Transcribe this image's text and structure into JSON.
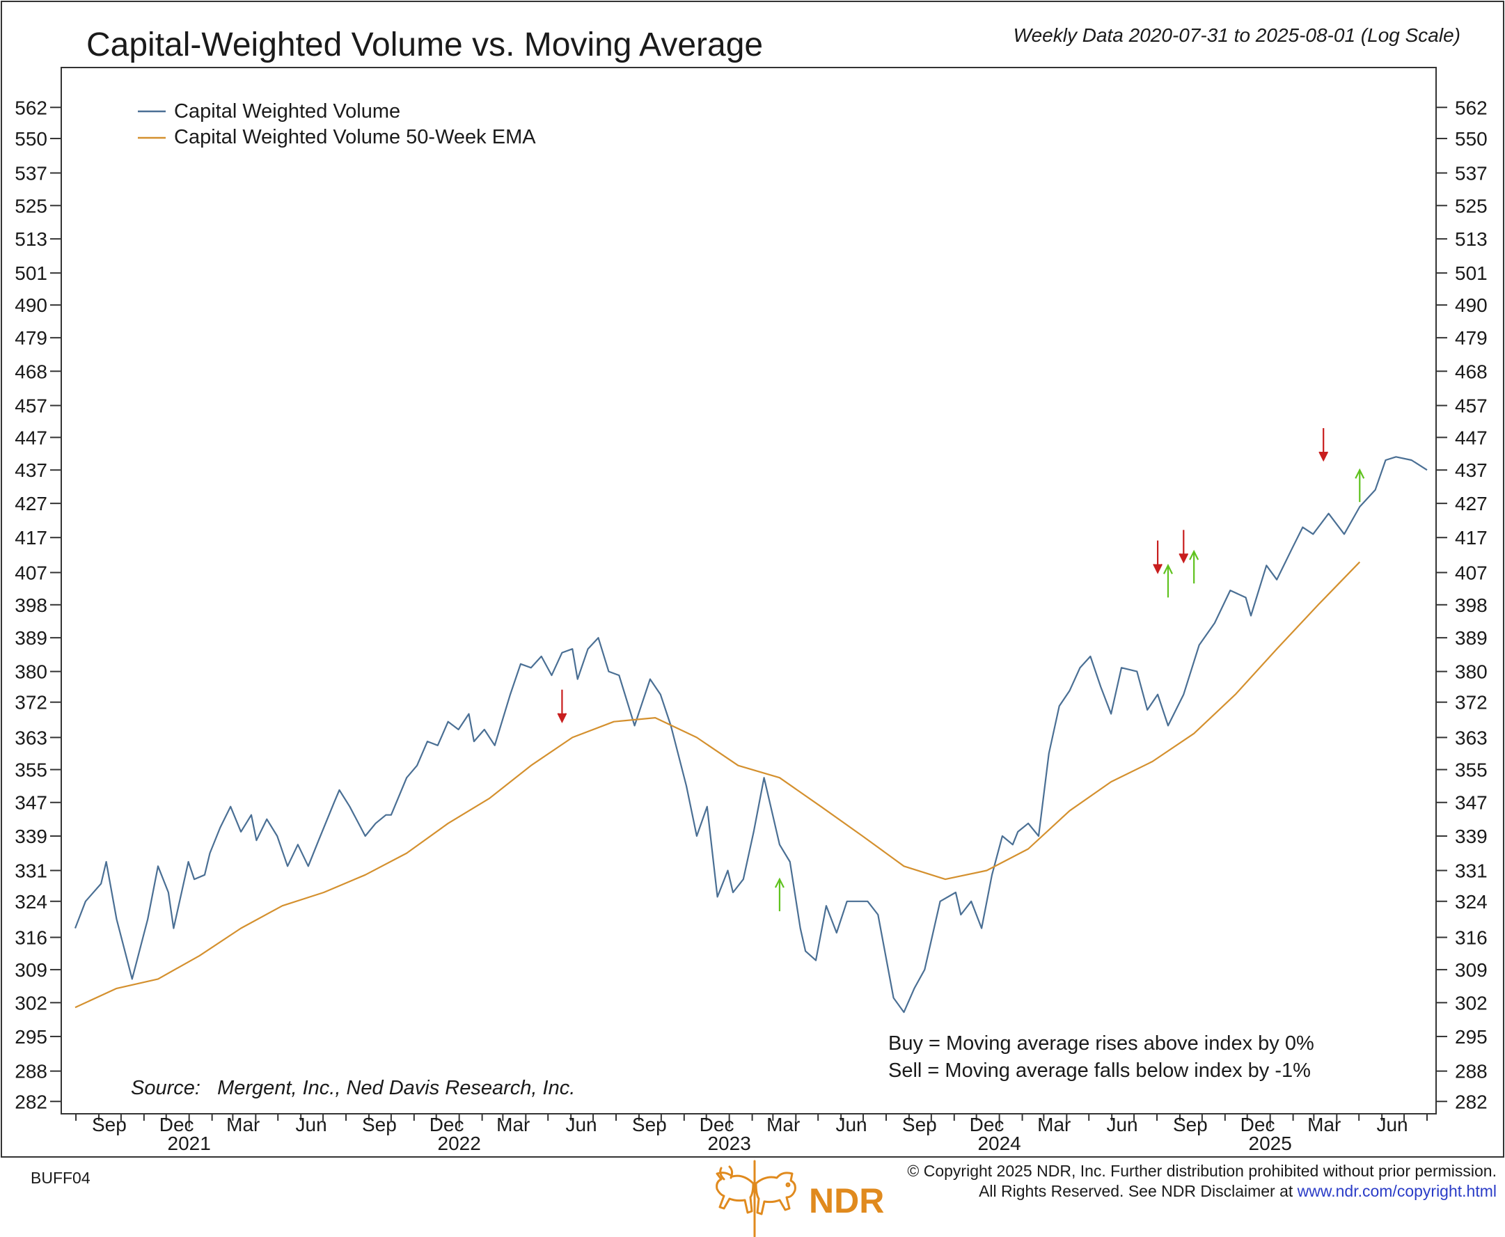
{
  "title": "Capital-Weighted Volume vs. Moving Average",
  "subtitle": "Weekly Data 2020-07-31 to 2025-08-01 (Log Scale)",
  "colors": {
    "volume": "#4a6f94",
    "ema": "#d4902e",
    "buy_arrow": "#5fc21e",
    "sell_arrow": "#c81e1e",
    "brand": "#e08a1e",
    "link": "#2a3cc7"
  },
  "source": "Source:   Mergent, Inc., Ned Davis Research, Inc.",
  "notes": {
    "buy": "Buy = Moving average rises above index by 0%",
    "sell": "Sell = Moving average falls below index by -1%"
  },
  "footer": {
    "code": "BUFF04",
    "copyright": "© Copyright 2025 NDR, Inc. Further distribution prohibited without prior permission.",
    "rights": "All Rights Reserved. See NDR Disclaimer at ",
    "link": "www.ndr.com/copyright.html",
    "brand": "NDR"
  },
  "chart_data": {
    "type": "line",
    "log_scale": true,
    "ylim": [
      280,
      570
    ],
    "xlim": [
      "2020-07-31",
      "2025-08-01"
    ],
    "y_ticks": [
      282,
      288,
      295,
      302,
      309,
      316,
      324,
      331,
      339,
      347,
      355,
      363,
      372,
      380,
      389,
      398,
      407,
      417,
      427,
      437,
      447,
      457,
      468,
      479,
      490,
      501,
      513,
      525,
      537,
      550,
      562
    ],
    "month_ticks": [
      "Sep",
      "Dec",
      "Mar",
      "Jun",
      "Sep",
      "Dec",
      "Mar",
      "Jun",
      "Sep",
      "Dec",
      "Mar",
      "Jun",
      "Sep",
      "Dec",
      "Mar",
      "Jun",
      "Sep",
      "Dec",
      "Mar",
      "Jun"
    ],
    "year_labels": [
      "2021",
      "2022",
      "2023",
      "2024",
      "2025"
    ],
    "legend": {
      "position": "top-left",
      "entries": [
        "Capital Weighted Volume",
        "Capital Weighted Volume 50-Week EMA"
      ]
    },
    "series": [
      {
        "name": "Capital Weighted Volume",
        "points": [
          [
            "2020-07-31",
            318
          ],
          [
            "2020-08-14",
            324
          ],
          [
            "2020-09-04",
            328
          ],
          [
            "2020-09-11",
            333
          ],
          [
            "2020-09-25",
            320
          ],
          [
            "2020-10-16",
            307
          ],
          [
            "2020-11-06",
            320
          ],
          [
            "2020-11-20",
            332
          ],
          [
            "2020-12-04",
            326
          ],
          [
            "2020-12-11",
            318
          ],
          [
            "2020-12-31",
            333
          ],
          [
            "2021-01-08",
            329
          ],
          [
            "2021-01-22",
            330
          ],
          [
            "2021-01-29",
            335
          ],
          [
            "2021-02-12",
            341
          ],
          [
            "2021-02-26",
            346
          ],
          [
            "2021-03-12",
            340
          ],
          [
            "2021-03-26",
            344
          ],
          [
            "2021-04-02",
            338
          ],
          [
            "2021-04-16",
            343
          ],
          [
            "2021-04-30",
            339
          ],
          [
            "2021-05-14",
            332
          ],
          [
            "2021-05-28",
            337
          ],
          [
            "2021-06-11",
            332
          ],
          [
            "2021-06-25",
            338
          ],
          [
            "2021-07-16",
            347
          ],
          [
            "2021-07-23",
            350
          ],
          [
            "2021-08-06",
            346
          ],
          [
            "2021-08-27",
            339
          ],
          [
            "2021-09-10",
            342
          ],
          [
            "2021-09-24",
            344
          ],
          [
            "2021-10-01",
            344
          ],
          [
            "2021-10-22",
            353
          ],
          [
            "2021-11-05",
            356
          ],
          [
            "2021-11-19",
            362
          ],
          [
            "2021-12-03",
            361
          ],
          [
            "2021-12-17",
            367
          ],
          [
            "2021-12-31",
            365
          ],
          [
            "2022-01-14",
            369
          ],
          [
            "2022-01-21",
            362
          ],
          [
            "2022-02-04",
            365
          ],
          [
            "2022-02-18",
            361
          ],
          [
            "2022-03-11",
            374
          ],
          [
            "2022-03-25",
            382
          ],
          [
            "2022-04-08",
            381
          ],
          [
            "2022-04-22",
            384
          ],
          [
            "2022-05-06",
            379
          ],
          [
            "2022-05-20",
            385
          ],
          [
            "2022-06-03",
            386
          ],
          [
            "2022-06-10",
            378
          ],
          [
            "2022-06-24",
            386
          ],
          [
            "2022-07-08",
            389
          ],
          [
            "2022-07-22",
            380
          ],
          [
            "2022-08-05",
            379
          ],
          [
            "2022-08-26",
            366
          ],
          [
            "2022-09-16",
            378
          ],
          [
            "2022-09-30",
            374
          ],
          [
            "2022-10-14",
            366
          ],
          [
            "2022-11-04",
            351
          ],
          [
            "2022-11-18",
            339
          ],
          [
            "2022-12-02",
            346
          ],
          [
            "2022-12-16",
            325
          ],
          [
            "2022-12-30",
            331
          ],
          [
            "2023-01-06",
            326
          ],
          [
            "2023-01-20",
            329
          ],
          [
            "2023-02-03",
            340
          ],
          [
            "2023-02-17",
            353
          ],
          [
            "2023-03-10",
            337
          ],
          [
            "2023-03-24",
            333
          ],
          [
            "2023-04-07",
            318
          ],
          [
            "2023-04-14",
            313
          ],
          [
            "2023-04-28",
            311
          ],
          [
            "2023-05-12",
            323
          ],
          [
            "2023-05-26",
            317
          ],
          [
            "2023-06-09",
            324
          ],
          [
            "2023-06-23",
            324
          ],
          [
            "2023-07-07",
            324
          ],
          [
            "2023-07-21",
            321
          ],
          [
            "2023-08-11",
            303
          ],
          [
            "2023-08-25",
            300
          ],
          [
            "2023-09-08",
            305
          ],
          [
            "2023-09-22",
            309
          ],
          [
            "2023-10-13",
            324
          ],
          [
            "2023-11-03",
            326
          ],
          [
            "2023-11-10",
            321
          ],
          [
            "2023-11-24",
            324
          ],
          [
            "2023-12-08",
            318
          ],
          [
            "2023-12-22",
            330
          ],
          [
            "2024-01-05",
            339
          ],
          [
            "2024-01-19",
            337
          ],
          [
            "2024-01-26",
            340
          ],
          [
            "2024-02-09",
            342
          ],
          [
            "2024-02-23",
            339
          ],
          [
            "2024-03-08",
            359
          ],
          [
            "2024-03-22",
            371
          ],
          [
            "2024-04-05",
            375
          ],
          [
            "2024-04-19",
            381
          ],
          [
            "2024-05-03",
            384
          ],
          [
            "2024-05-17",
            376
          ],
          [
            "2024-05-31",
            369
          ],
          [
            "2024-06-14",
            381
          ],
          [
            "2024-07-05",
            380
          ],
          [
            "2024-07-19",
            370
          ],
          [
            "2024-08-02",
            374
          ],
          [
            "2024-08-16",
            366
          ],
          [
            "2024-09-06",
            374
          ],
          [
            "2024-09-27",
            387
          ],
          [
            "2024-10-18",
            393
          ],
          [
            "2024-11-08",
            402
          ],
          [
            "2024-11-29",
            400
          ],
          [
            "2024-12-06",
            395
          ],
          [
            "2024-12-27",
            409
          ],
          [
            "2025-01-10",
            405
          ],
          [
            "2025-01-17",
            408
          ],
          [
            "2025-01-31",
            414
          ],
          [
            "2025-02-14",
            420
          ],
          [
            "2025-02-28",
            418
          ],
          [
            "2025-03-21",
            424
          ],
          [
            "2025-04-11",
            418
          ],
          [
            "2025-05-02",
            426
          ],
          [
            "2025-05-23",
            431
          ],
          [
            "2025-06-06",
            440
          ],
          [
            "2025-06-20",
            441
          ],
          [
            "2025-07-11",
            440
          ],
          [
            "2025-08-01",
            437
          ]
        ]
      },
      {
        "name": "Capital Weighted Volume 50-Week EMA",
        "points": [
          [
            "2020-07-31",
            301
          ],
          [
            "2020-09-25",
            305
          ],
          [
            "2020-11-20",
            307
          ],
          [
            "2021-01-15",
            312
          ],
          [
            "2021-03-12",
            318
          ],
          [
            "2021-05-07",
            323
          ],
          [
            "2021-07-02",
            326
          ],
          [
            "2021-08-27",
            330
          ],
          [
            "2021-10-22",
            335
          ],
          [
            "2021-12-17",
            342
          ],
          [
            "2022-02-11",
            348
          ],
          [
            "2022-04-08",
            356
          ],
          [
            "2022-06-03",
            363
          ],
          [
            "2022-07-29",
            367
          ],
          [
            "2022-09-23",
            368
          ],
          [
            "2022-11-18",
            363
          ],
          [
            "2023-01-13",
            356
          ],
          [
            "2023-03-10",
            353
          ],
          [
            "2023-05-05",
            346
          ],
          [
            "2023-06-30",
            339
          ],
          [
            "2023-08-25",
            332
          ],
          [
            "2023-10-20",
            329
          ],
          [
            "2023-12-15",
            331
          ],
          [
            "2024-02-09",
            336
          ],
          [
            "2024-04-05",
            345
          ],
          [
            "2024-05-31",
            352
          ],
          [
            "2024-07-26",
            357
          ],
          [
            "2024-09-20",
            364
          ],
          [
            "2024-11-15",
            374
          ],
          [
            "2025-01-10",
            386
          ],
          [
            "2025-03-07",
            398
          ],
          [
            "2025-05-02",
            410
          ]
        ]
      }
    ],
    "signals": [
      {
        "type": "sell",
        "date": "2022-05-20",
        "value": 367
      },
      {
        "type": "buy",
        "date": "2023-03-10",
        "value": 329
      },
      {
        "type": "sell",
        "date": "2024-08-02",
        "value": 407
      },
      {
        "type": "buy",
        "date": "2024-08-16",
        "value": 409
      },
      {
        "type": "sell",
        "date": "2024-09-06",
        "value": 410
      },
      {
        "type": "buy",
        "date": "2024-09-20",
        "value": 413
      },
      {
        "type": "sell",
        "date": "2025-03-14",
        "value": 440
      },
      {
        "type": "buy",
        "date": "2025-05-02",
        "value": 437
      }
    ]
  }
}
